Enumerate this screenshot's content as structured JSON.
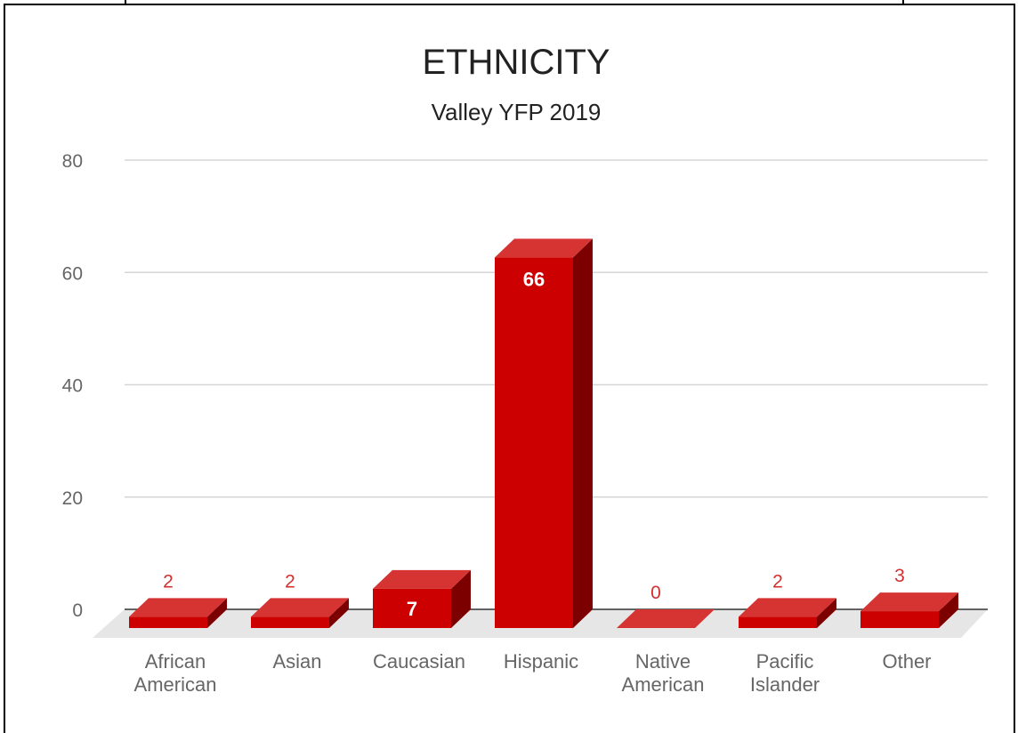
{
  "chart_data": {
    "type": "bar",
    "title": "ETHNICITY",
    "subtitle": "Valley YFP 2019",
    "categories": [
      [
        "African",
        "American"
      ],
      [
        "Asian"
      ],
      [
        "Caucasian"
      ],
      [
        "Hispanic"
      ],
      [
        "Native",
        "American"
      ],
      [
        "Pacific",
        "Islander"
      ],
      [
        "Other"
      ]
    ],
    "values": [
      2,
      2,
      7,
      66,
      0,
      2,
      3
    ],
    "data_labels": [
      "2",
      "2",
      "7",
      "66",
      "0",
      "2",
      "3"
    ],
    "y_ticks": [
      "0",
      "20",
      "40",
      "60",
      "80"
    ],
    "ylim": [
      0,
      80
    ],
    "grid": true,
    "legend": "none",
    "bar_color": "#cc0000",
    "bar_top_color": "#d63333",
    "bar_side_color": "#7d0000"
  }
}
